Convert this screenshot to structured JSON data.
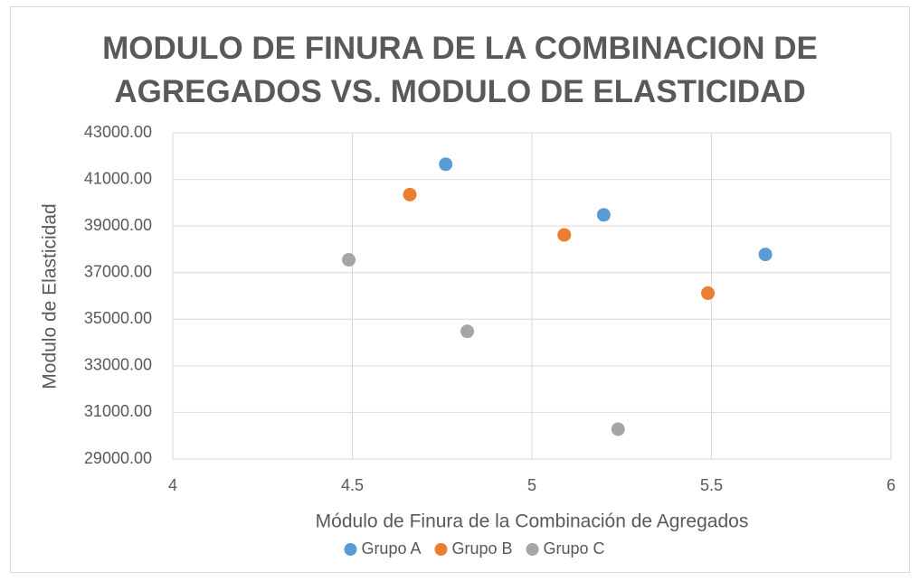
{
  "chart_data": {
    "type": "scatter",
    "title": "MODULO DE FINURA DE LA COMBINACION DE AGREGADOS VS. MODULO DE ELASTICIDAD",
    "x_label": "Módulo de Finura de la Combinación de Agregados",
    "y_label": "Modulo de Elasticidad",
    "xlim": [
      4,
      6
    ],
    "xticks": [
      4,
      4.5,
      5,
      5.5,
      6
    ],
    "ylim": [
      29000,
      43000
    ],
    "yticks": [
      {
        "value": 29000,
        "label": "29000.00"
      },
      {
        "value": 31000,
        "label": "31000.00"
      },
      {
        "value": 33000,
        "label": "33000.00"
      },
      {
        "value": 35000,
        "label": "35000.00"
      },
      {
        "value": 37000,
        "label": "37000.00"
      },
      {
        "value": 39000,
        "label": "39000.00"
      },
      {
        "value": 41000,
        "label": "41000.00"
      },
      {
        "value": 43000,
        "label": "43000.00"
      }
    ],
    "grid": true,
    "legend": "bottom",
    "series": [
      {
        "name": "Grupo A",
        "color": "#5b9bd5",
        "x": [
          4.76,
          5.2,
          5.65
        ],
        "values": [
          41650,
          39480,
          37780
        ]
      },
      {
        "name": "Grupo B",
        "color": "#ed7d31",
        "x": [
          4.66,
          5.09,
          5.49
        ],
        "values": [
          40350,
          38620,
          36120
        ]
      },
      {
        "name": "Grupo C",
        "color": "#a5a5a5",
        "x": [
          4.49,
          4.82,
          5.24
        ],
        "values": [
          37550,
          34480,
          30280
        ]
      }
    ]
  }
}
